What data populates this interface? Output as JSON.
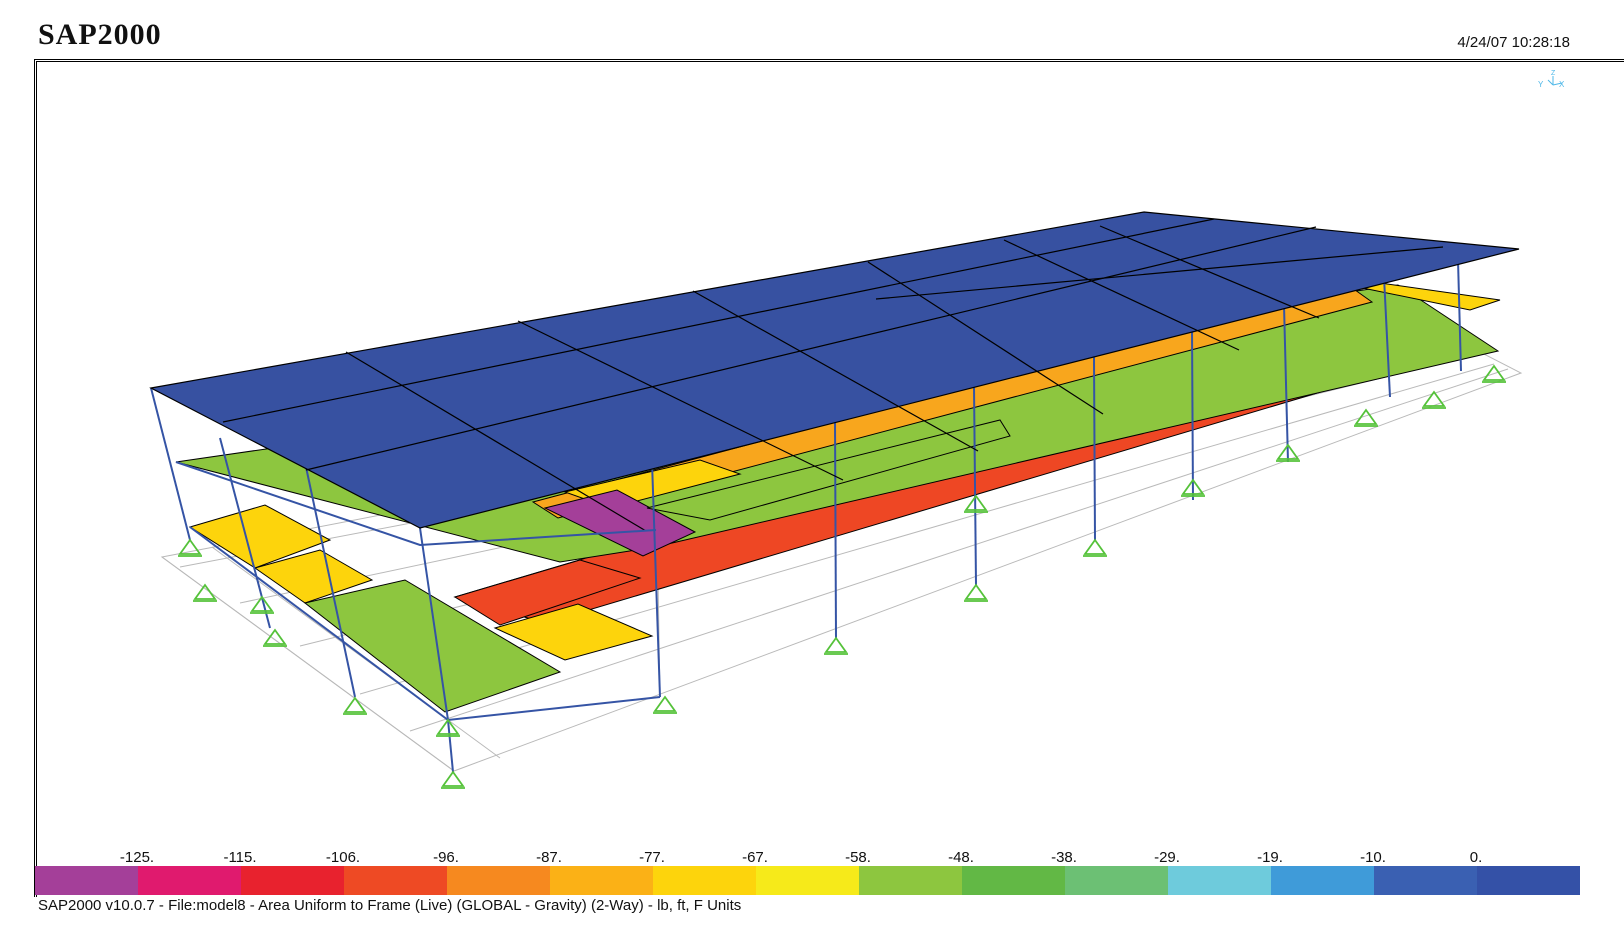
{
  "header": {
    "app_title": "SAP2000",
    "timestamp": "4/24/07 10:28:18"
  },
  "axis_indicator": {
    "z": "Z",
    "y": "Y",
    "x": "X",
    "color": "#4fb8e8"
  },
  "legend": {
    "ticks": [
      "-125.",
      "-115.",
      "-106.",
      "-96.",
      "-87.",
      "-77.",
      "-67.",
      "-58.",
      "-48.",
      "-38.",
      "-29.",
      "-19.",
      "-10.",
      "0."
    ],
    "colors": [
      "#a43f99",
      "#e01a6e",
      "#e8222e",
      "#ee4a24",
      "#f6891f",
      "#fbb116",
      "#fdd40c",
      "#f6ea1a",
      "#8dc63f",
      "#62b845",
      "#6cc074",
      "#6ecbdc",
      "#3f9bd9",
      "#3a60b2",
      "#3451a7"
    ]
  },
  "status_bar": {
    "text": "SAP2000 v10.0.7 - File:model8 - Area Uniform to Frame (Live) (GLOBAL - Gravity) (2-Way) - lb, ft, F Units"
  },
  "model": {
    "slab_colors": {
      "roof": "#3751a1",
      "upper_green": "#8dc63f",
      "upper_orange": "#f8a61d",
      "upper_yellow": "#fdd40c",
      "upper_purple": "#a43f99",
      "lower_red": "#ee4724",
      "lower_yellow": "#fdd40c",
      "lower_green": "#8dc63f",
      "frame": "#3554a5",
      "support": "#55c23a"
    }
  }
}
